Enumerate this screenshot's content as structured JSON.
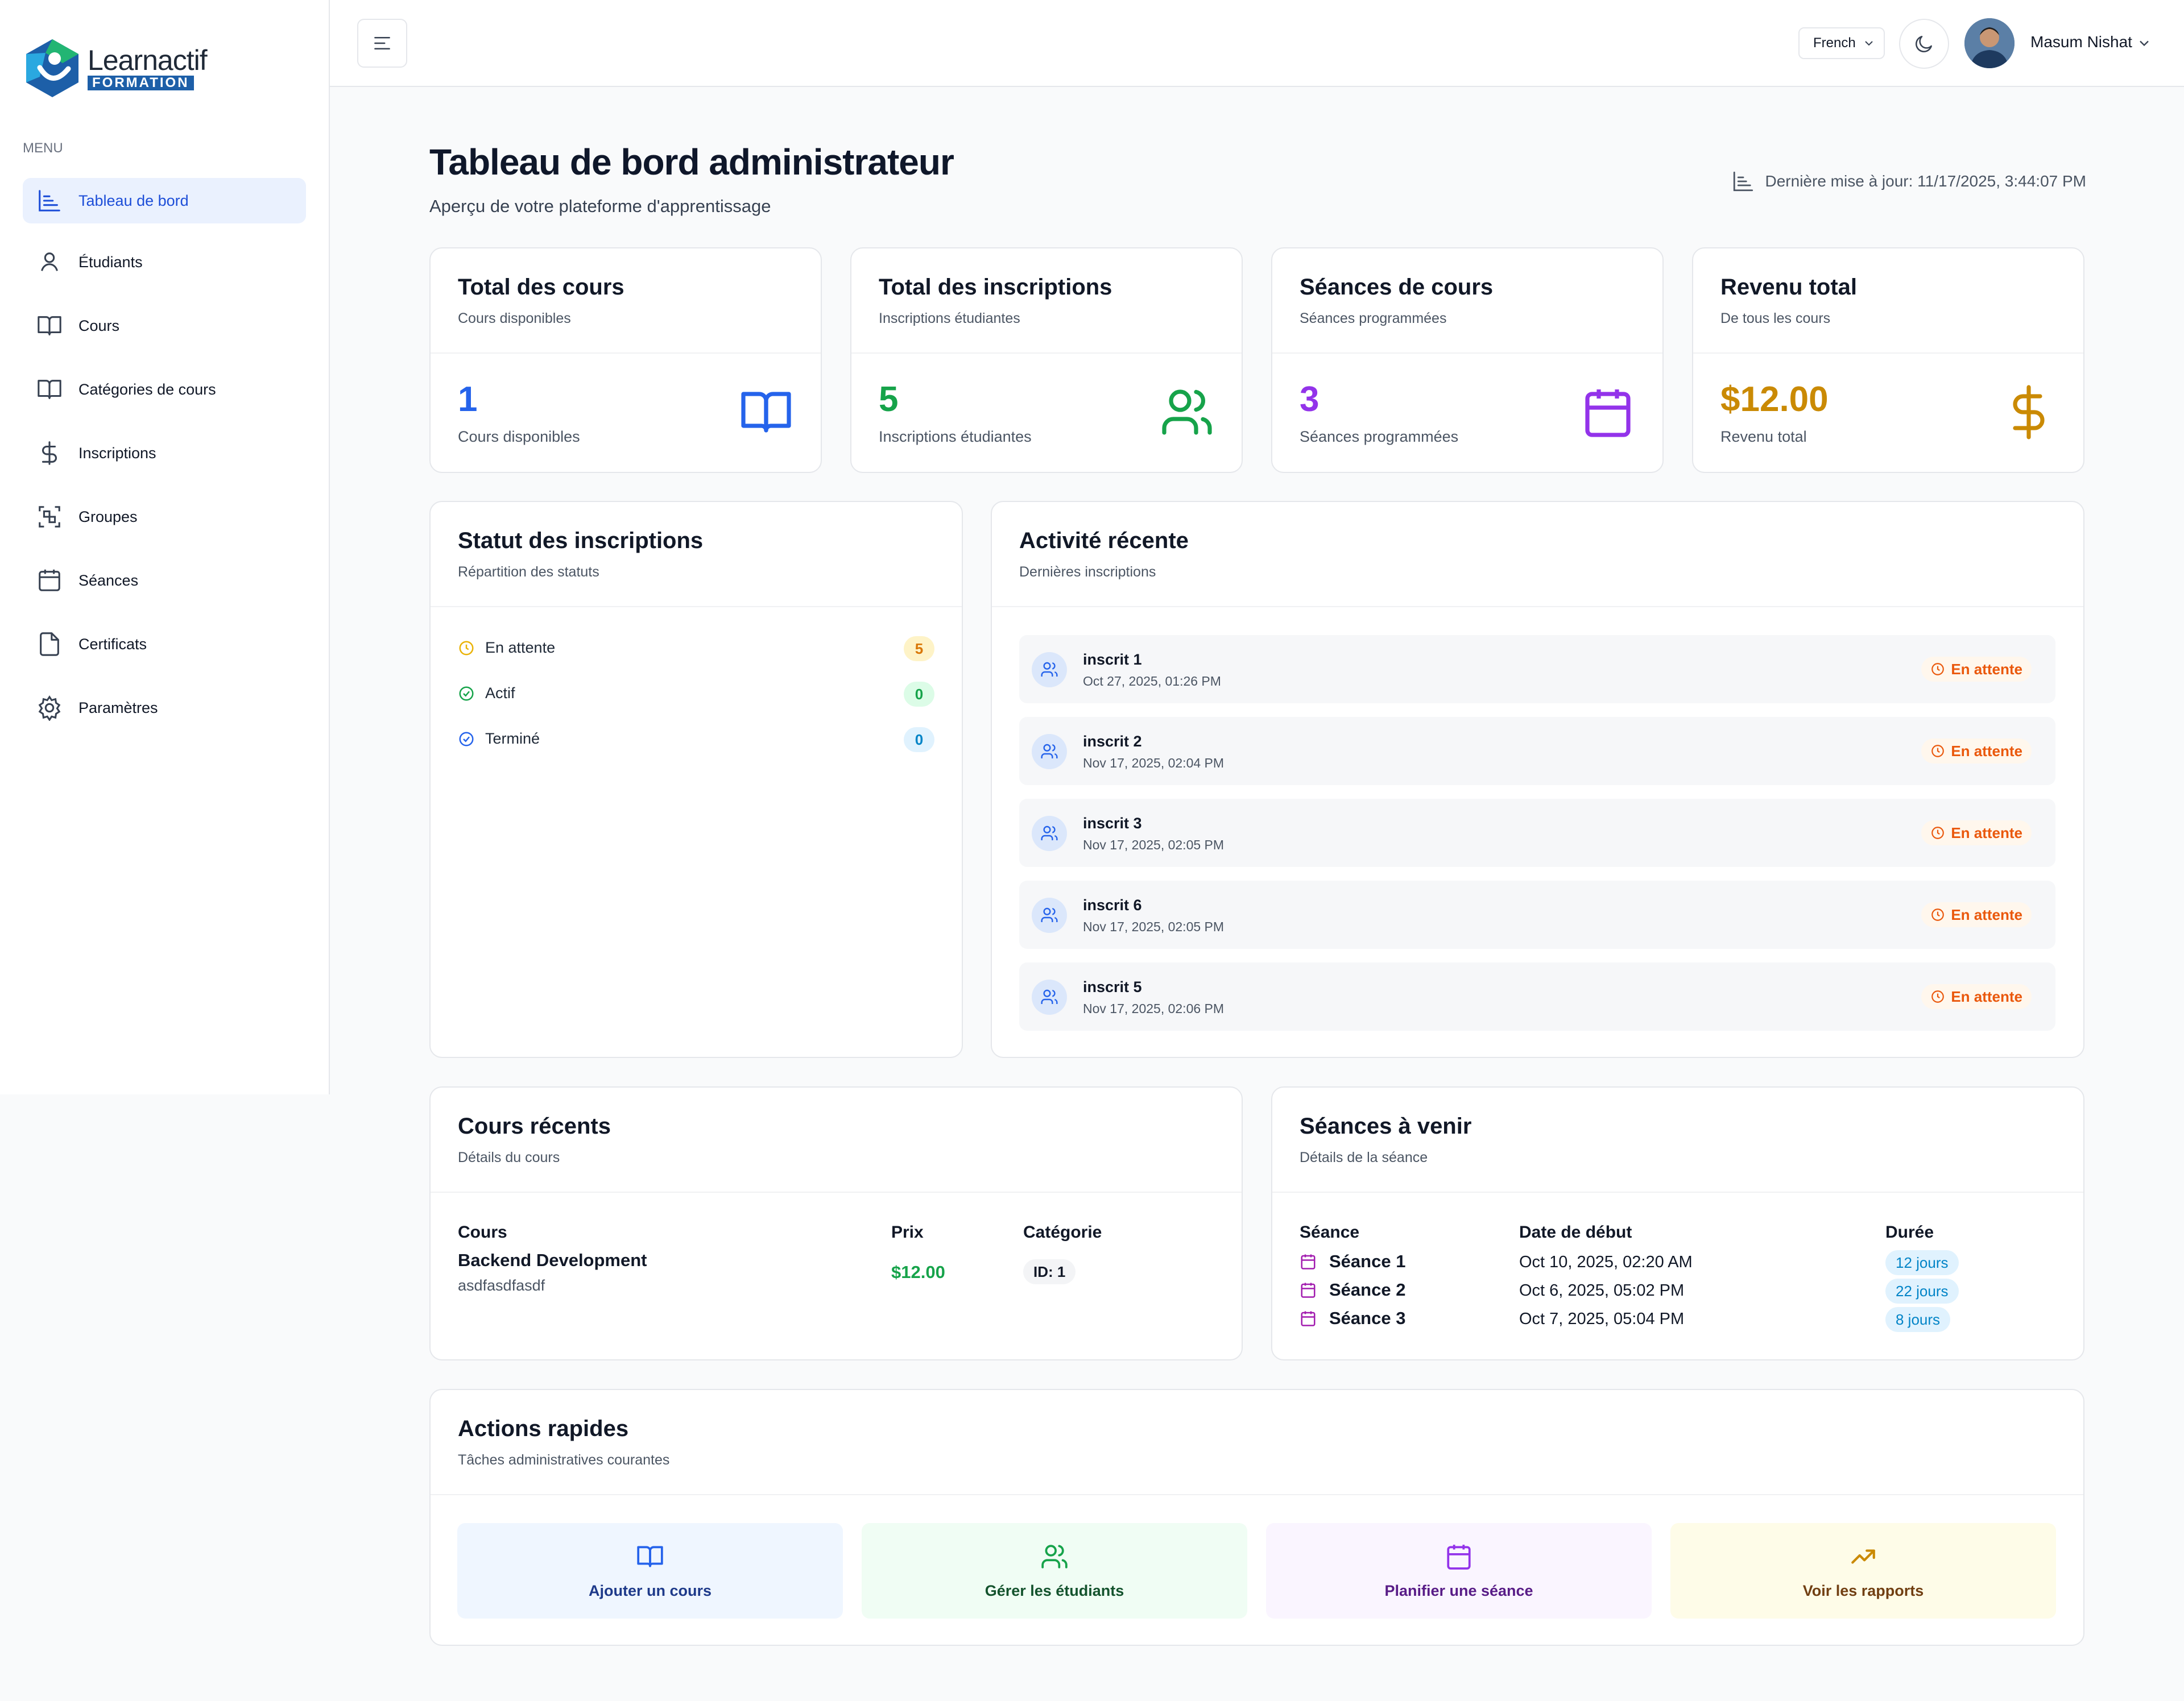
{
  "brand": {
    "name_top": "Learnactif",
    "name_bottom": "FORMATION"
  },
  "sidebar": {
    "menu_label": "MENU",
    "items": [
      {
        "label": "Tableau de bord",
        "icon": "chart-icon",
        "active": true
      },
      {
        "label": "Étudiants",
        "icon": "user-icon"
      },
      {
        "label": "Cours",
        "icon": "book-icon"
      },
      {
        "label": "Catégories de cours",
        "icon": "book-open-icon"
      },
      {
        "label": "Inscriptions",
        "icon": "dollar-icon"
      },
      {
        "label": "Groupes",
        "icon": "group-icon"
      },
      {
        "label": "Séances",
        "icon": "calendar-icon"
      },
      {
        "label": "Certificats",
        "icon": "file-icon"
      },
      {
        "label": "Paramètres",
        "icon": "gear-icon"
      }
    ]
  },
  "topbar": {
    "language": "French",
    "user_name": "Masum Nishat"
  },
  "header": {
    "title": "Tableau de bord administrateur",
    "subtitle": "Aperçu de votre plateforme d'apprentissage",
    "last_updated": "Dernière mise à jour: 11/17/2025, 3:44:07 PM"
  },
  "stats": [
    {
      "title": "Total des cours",
      "subtitle": "Cours disponibles",
      "value": "1",
      "label": "Cours disponibles",
      "color": "#2563eb",
      "icon": "book-open-icon"
    },
    {
      "title": "Total des inscriptions",
      "subtitle": "Inscriptions étudiantes",
      "value": "5",
      "label": "Inscriptions étudiantes",
      "color": "#16a34a",
      "icon": "users-icon"
    },
    {
      "title": "Séances de cours",
      "subtitle": "Séances programmées",
      "value": "3",
      "label": "Séances programmées",
      "color": "#9333ea",
      "icon": "calendar-icon"
    },
    {
      "title": "Revenu total",
      "subtitle": "De tous les cours",
      "value": "$12.00",
      "label": "Revenu total",
      "color": "#ca8a04",
      "icon": "dollar-icon"
    }
  ],
  "status": {
    "title": "Statut des inscriptions",
    "subtitle": "Répartition des statuts",
    "rows": [
      {
        "label": "En attente",
        "count": "5",
        "color": "#eab308"
      },
      {
        "label": "Actif",
        "count": "0",
        "color": "#16a34a"
      },
      {
        "label": "Terminé",
        "count": "0",
        "color": "#2563eb"
      }
    ]
  },
  "activity": {
    "title": "Activité récente",
    "subtitle": "Dernières inscriptions",
    "items": [
      {
        "name": "inscrit 1",
        "date": "Oct 27, 2025, 01:26 PM",
        "status": "En attente"
      },
      {
        "name": "inscrit 2",
        "date": "Nov 17, 2025, 02:04 PM",
        "status": "En attente"
      },
      {
        "name": "inscrit 3",
        "date": "Nov 17, 2025, 02:05 PM",
        "status": "En attente"
      },
      {
        "name": "inscrit 6",
        "date": "Nov 17, 2025, 02:05 PM",
        "status": "En attente"
      },
      {
        "name": "inscrit 5",
        "date": "Nov 17, 2025, 02:06 PM",
        "status": "En attente"
      }
    ]
  },
  "recent_courses": {
    "title": "Cours récents",
    "subtitle": "Détails du cours",
    "headers": {
      "course": "Cours",
      "price": "Prix",
      "category": "Catégorie"
    },
    "rows": [
      {
        "name": "Backend Development",
        "desc": "asdfasdfasdf",
        "price": "$12.00",
        "category": "ID: 1"
      }
    ]
  },
  "upcoming": {
    "title": "Séances à venir",
    "subtitle": "Détails de la séance",
    "headers": {
      "session": "Séance",
      "start": "Date de début",
      "duration": "Durée"
    },
    "rows": [
      {
        "session": "Séance 1",
        "start": "Oct 10, 2025, 02:20 AM",
        "duration": "12 jours"
      },
      {
        "session": "Séance 2",
        "start": "Oct 6, 2025, 05:02 PM",
        "duration": "22 jours"
      },
      {
        "session": "Séance 3",
        "start": "Oct 7, 2025, 05:04 PM",
        "duration": "8 jours"
      }
    ]
  },
  "quick_actions": {
    "title": "Actions rapides",
    "subtitle": "Tâches administratives courantes",
    "items": [
      {
        "label": "Ajouter un cours",
        "icon": "book-open-icon",
        "bg": "#eff6ff",
        "color": "#1e3a8a",
        "icon_color": "#2563eb"
      },
      {
        "label": "Gérer les étudiants",
        "icon": "users-icon",
        "bg": "#f0fdf4",
        "color": "#14532d",
        "icon_color": "#16a34a"
      },
      {
        "label": "Planifier une séance",
        "icon": "calendar-icon",
        "bg": "#faf5ff",
        "color": "#581c87",
        "icon_color": "#9333ea"
      },
      {
        "label": "Voir les rapports",
        "icon": "trending-up-icon",
        "bg": "#fefce8",
        "color": "#713f12",
        "icon_color": "#ca8a04"
      }
    ]
  }
}
